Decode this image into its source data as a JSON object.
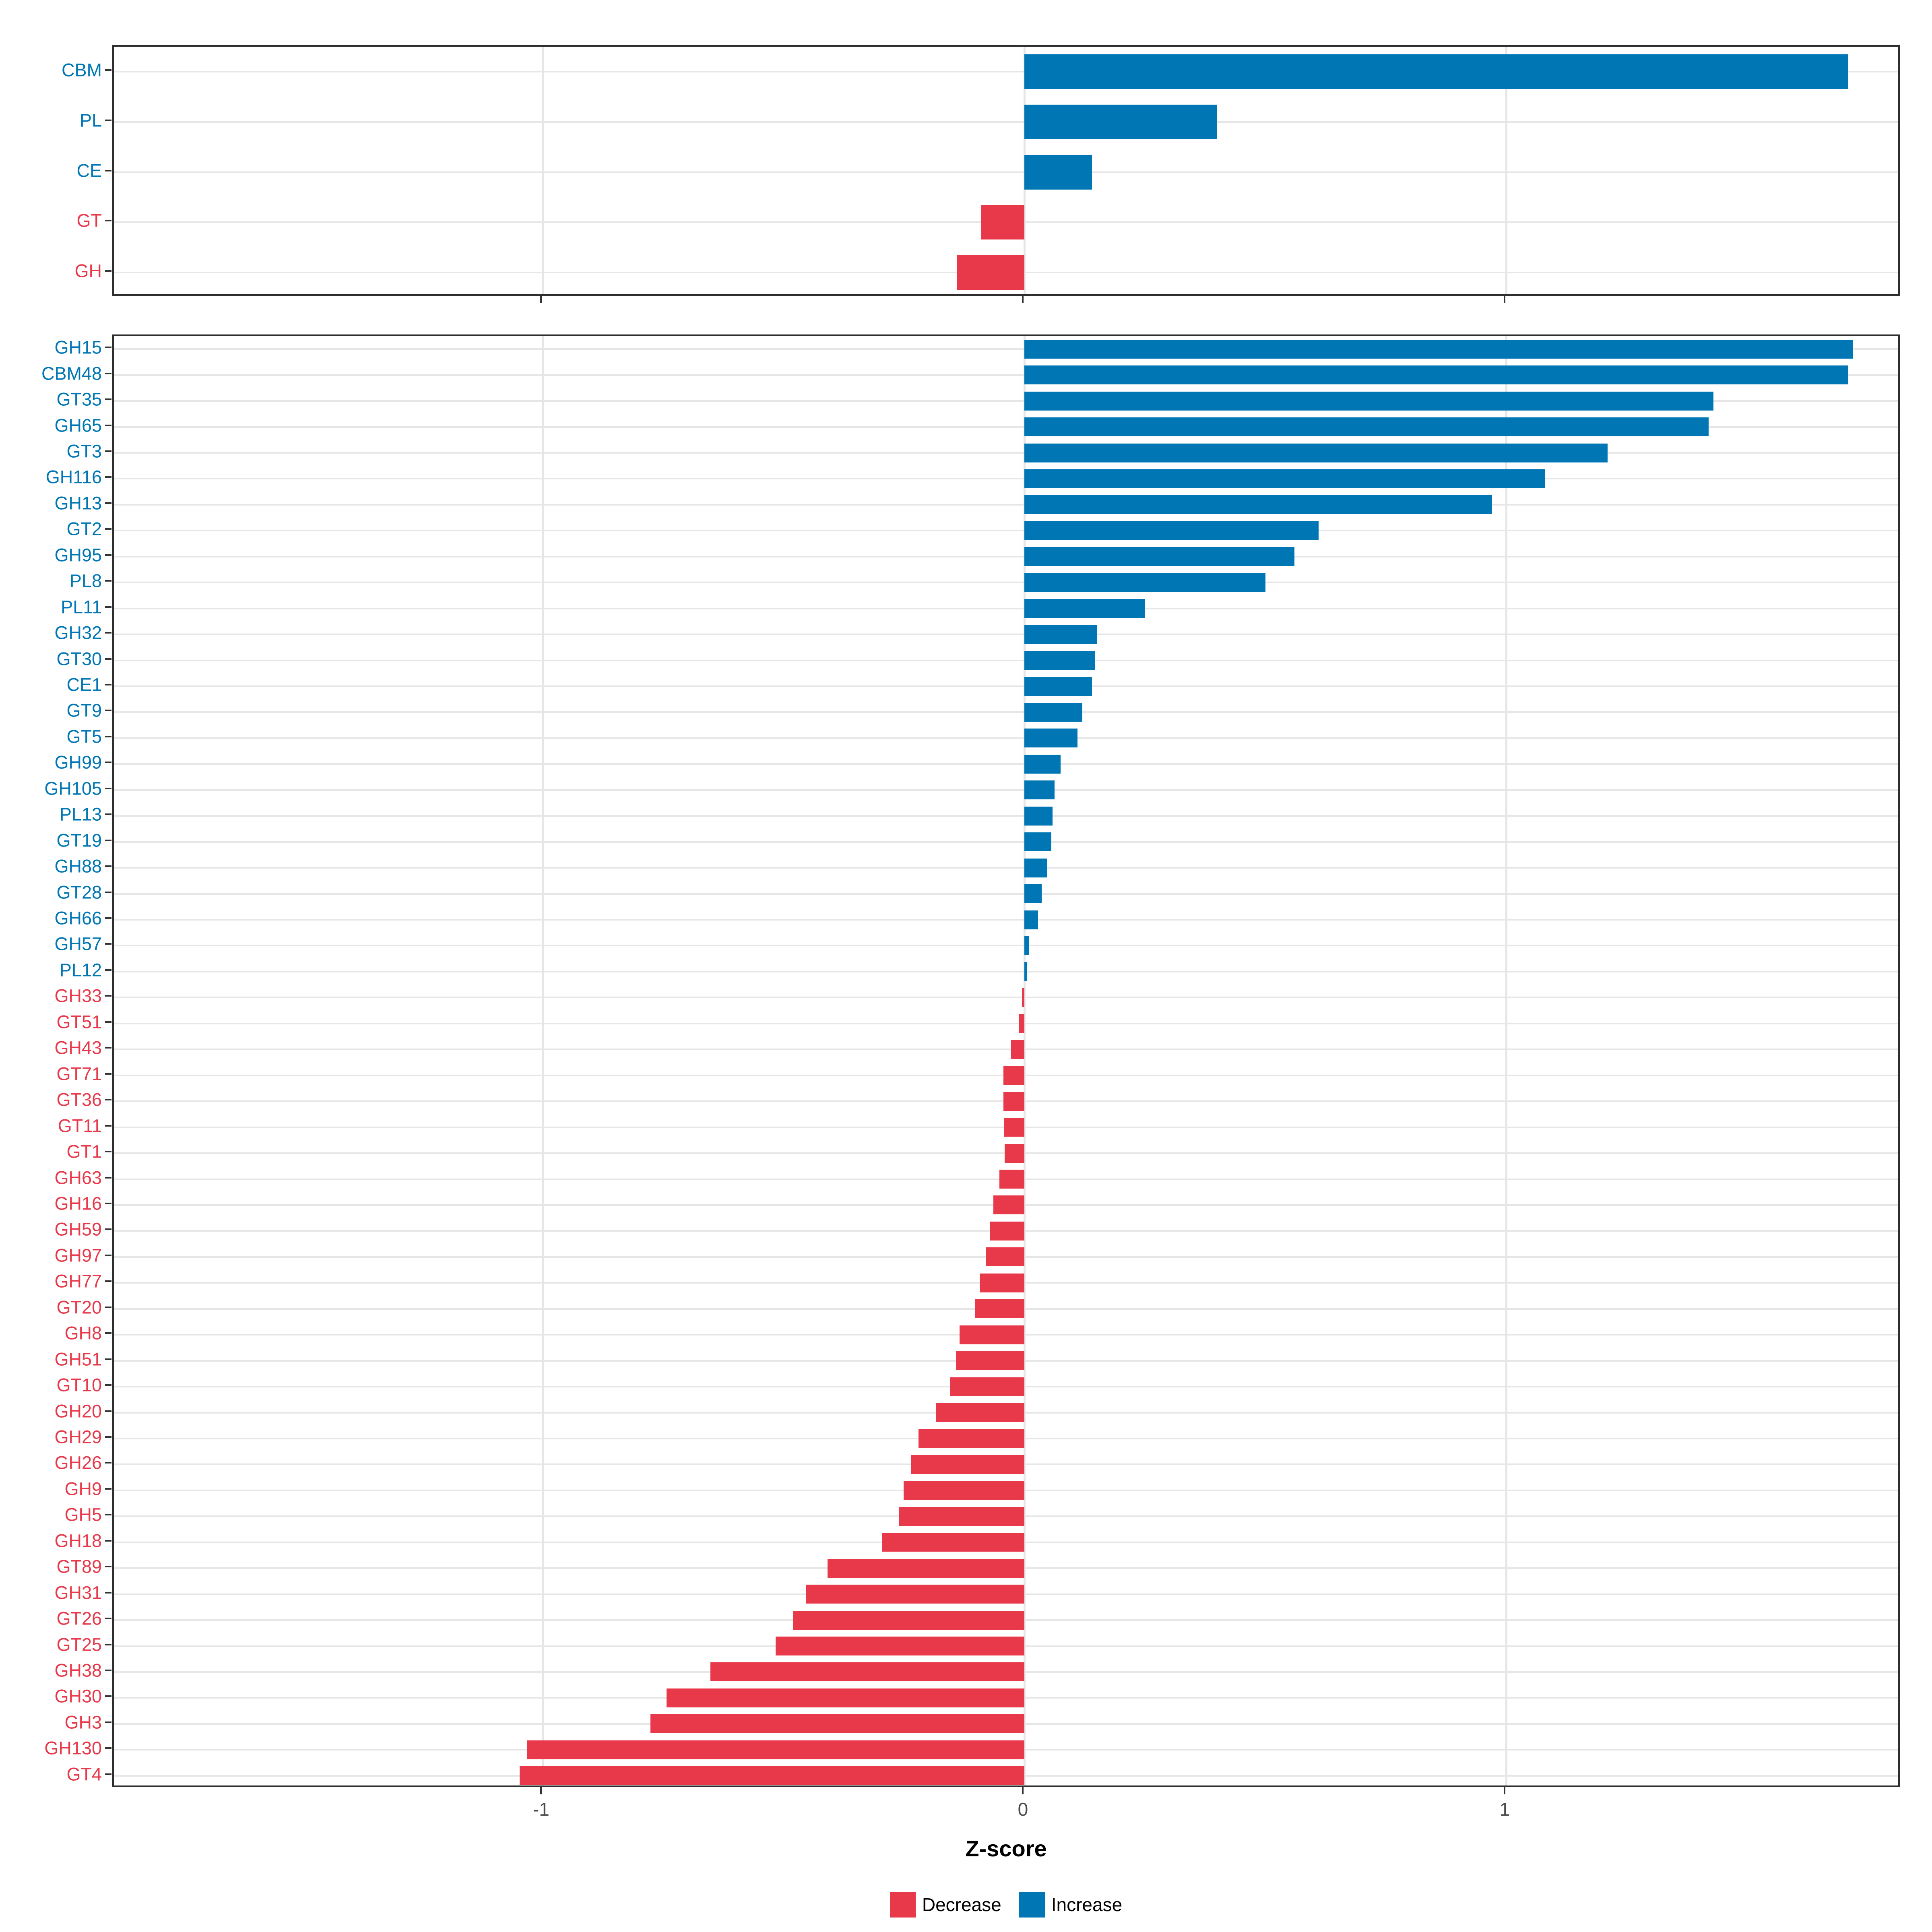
{
  "colors": {
    "increase": "#0076b4",
    "decrease": "#e8394a",
    "grid": "#e6e6e6",
    "panel_border": "#2e2e2e",
    "tick": "#333333",
    "axis_text": "#4a4a4a"
  },
  "axis": {
    "xlabel": "Z-score",
    "ticks": [
      -1,
      0,
      1
    ],
    "tick_labels": [
      "-1",
      "0",
      "1"
    ],
    "xlim": [
      -1.89,
      1.82
    ]
  },
  "legend": {
    "items": [
      {
        "label": "Decrease",
        "type": "decrease"
      },
      {
        "label": "Increase",
        "type": "increase"
      }
    ]
  },
  "chart_data": [
    {
      "type": "bar",
      "orientation": "horizontal",
      "panel": "top",
      "title": "",
      "xlabel": "Z-score",
      "xlim": [
        -1.89,
        1.82
      ],
      "grid": "major-x and category lines",
      "categories": [
        "CBM",
        "PL",
        "CE",
        "GT",
        "GH"
      ],
      "values": [
        1.71,
        0.4,
        0.14,
        -0.09,
        -0.14
      ]
    },
    {
      "type": "bar",
      "orientation": "horizontal",
      "panel": "bottom",
      "title": "",
      "xlabel": "Z-score",
      "xlim": [
        -1.89,
        1.82
      ],
      "grid": "major-x and category lines",
      "categories": [
        "GH15",
        "CBM48",
        "GT35",
        "GH65",
        "GT3",
        "GH116",
        "GH13",
        "GT2",
        "GH95",
        "PL8",
        "PL11",
        "GH32",
        "GT30",
        "CE1",
        "GT9",
        "GT5",
        "GH99",
        "GH105",
        "PL13",
        "GT19",
        "GH88",
        "GT28",
        "GH66",
        "GH57",
        "PL12",
        "GH33",
        "GT51",
        "GH43",
        "GT71",
        "GT36",
        "GT11",
        "GT1",
        "GH63",
        "GH16",
        "GH59",
        "GH97",
        "GH77",
        "GT20",
        "GH8",
        "GH51",
        "GT10",
        "GH20",
        "GH29",
        "GH26",
        "GH9",
        "GH5",
        "GH18",
        "GT89",
        "GH31",
        "GT26",
        "GT25",
        "GH38",
        "GH30",
        "GH3",
        "GH130",
        "GT4"
      ],
      "values": [
        1.72,
        1.71,
        1.43,
        1.42,
        1.21,
        1.08,
        0.97,
        0.61,
        0.56,
        0.5,
        0.25,
        0.15,
        0.146,
        0.14,
        0.12,
        0.11,
        0.075,
        0.062,
        0.058,
        0.056,
        0.047,
        0.036,
        0.028,
        0.009,
        0.005,
        -0.005,
        -0.012,
        -0.028,
        -0.044,
        -0.044,
        -0.043,
        -0.041,
        -0.052,
        -0.065,
        -0.072,
        -0.08,
        -0.093,
        -0.103,
        -0.135,
        -0.142,
        -0.155,
        -0.184,
        -0.22,
        -0.235,
        -0.251,
        -0.261,
        -0.295,
        -0.409,
        -0.453,
        -0.481,
        -0.517,
        -0.652,
        -0.743,
        -0.776,
        -1.032,
        -1.048
      ]
    }
  ]
}
